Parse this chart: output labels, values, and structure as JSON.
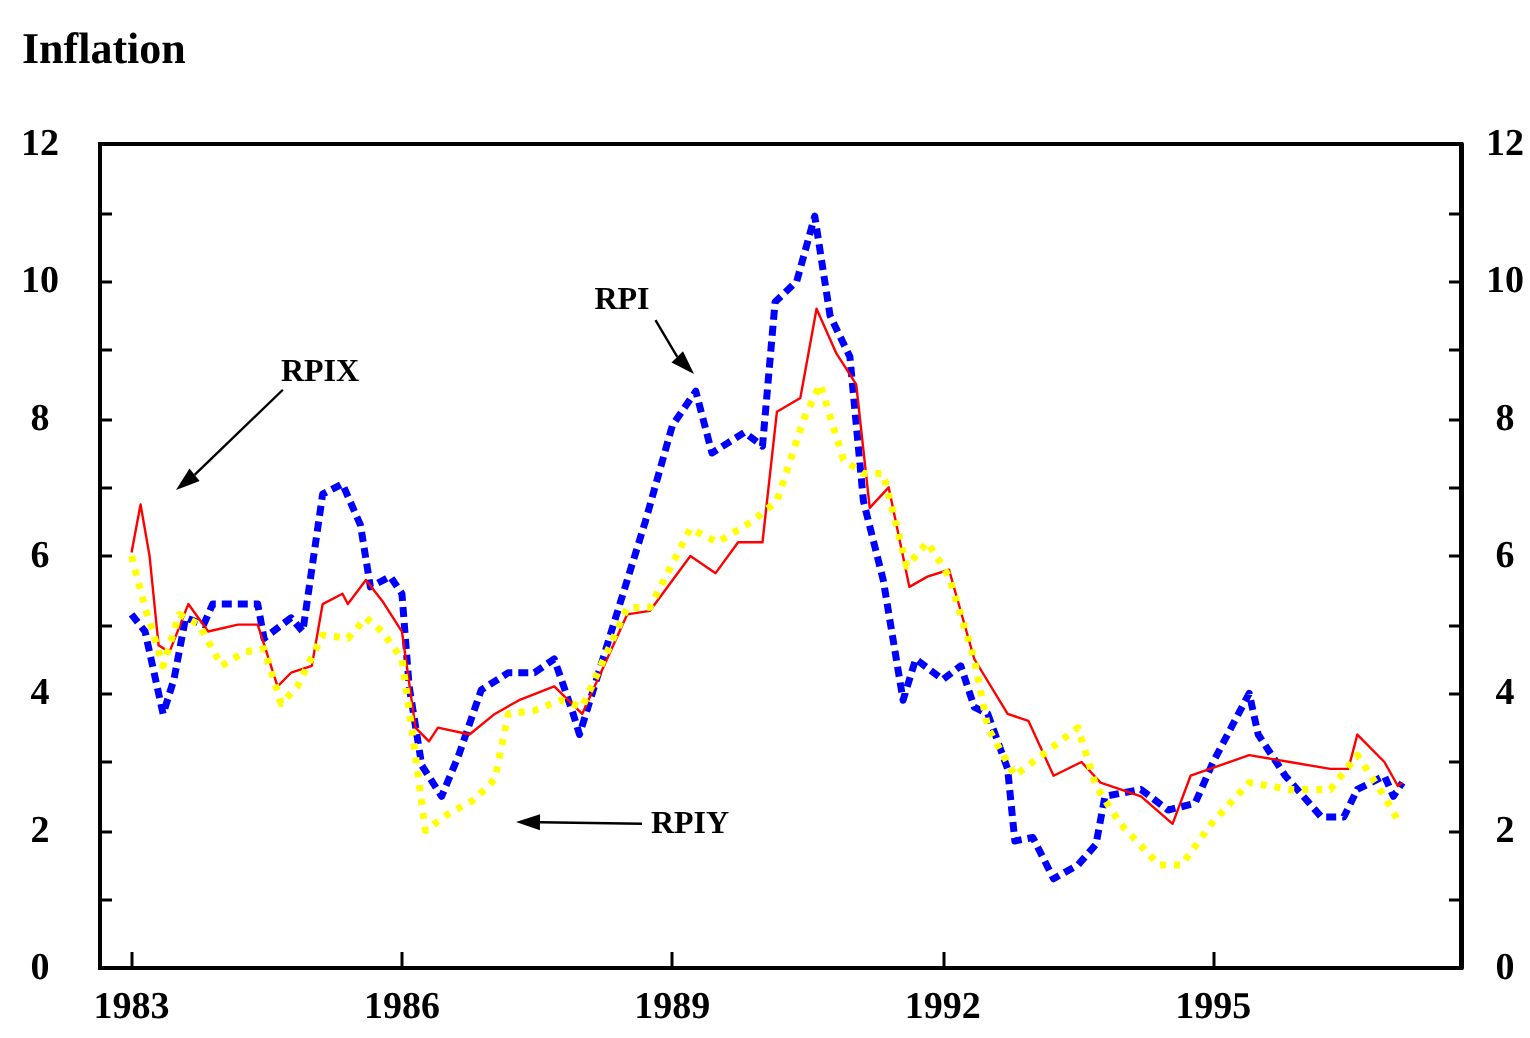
{
  "chart_data": {
    "type": "line",
    "title": "Inflation",
    "xlim": [
      1982.65,
      1997.75
    ],
    "xticks": [
      1983,
      1986,
      1989,
      1992,
      1995
    ],
    "ylim": [
      0,
      12
    ],
    "yticks": [
      0,
      {
        "value": 1,
        "label": null
      },
      2,
      {
        "value": 3,
        "label": null
      },
      4,
      {
        "value": 5,
        "label": null
      },
      6,
      {
        "value": 7,
        "label": null
      },
      8,
      {
        "value": 9,
        "label": null
      },
      10,
      {
        "value": 11,
        "label": null
      },
      12
    ],
    "y2lim": [
      0,
      12
    ],
    "y2ticks": [
      0,
      {
        "value": 1,
        "label": null
      },
      2,
      {
        "value": 3,
        "label": null
      },
      4,
      {
        "value": 5,
        "label": null
      },
      6,
      {
        "value": 7,
        "label": null
      },
      8,
      {
        "value": 9,
        "label": null
      },
      10,
      {
        "value": 11,
        "label": null
      },
      12
    ],
    "grid": false,
    "marker": "none",
    "series": [
      {
        "color": "#0000ff",
        "line_style": "dashed",
        "x": [
          1983.0,
          1983.15,
          1983.35,
          1983.47,
          1983.6,
          1983.8,
          1983.9,
          1984.4,
          1984.47,
          1984.77,
          1984.9,
          1985.12,
          1985.34,
          1985.54,
          1985.65,
          1985.87,
          1986.0,
          1986.08,
          1986.22,
          1986.44,
          1986.63,
          1986.88,
          1987.18,
          1987.47,
          1987.69,
          1987.9,
          1987.97,
          1988.5,
          1988.7,
          1989.0,
          1989.26,
          1989.44,
          1989.8,
          1990.0,
          1990.14,
          1990.38,
          1990.58,
          1990.75,
          1990.97,
          1991.12,
          1991.34,
          1991.56,
          1991.7,
          1992.0,
          1992.2,
          1992.35,
          1992.5,
          1992.72,
          1992.8,
          1993.0,
          1993.23,
          1993.5,
          1993.7,
          1993.8,
          1994.2,
          1994.5,
          1994.8,
          1995.0,
          1995.2,
          1995.4,
          1995.5,
          1995.8,
          1996.2,
          1996.45,
          1996.6,
          1996.9,
          1997.0,
          1997.1
        ],
        "values": [
          5.15,
          4.9,
          3.7,
          4.2,
          5.1,
          5.0,
          5.3,
          5.3,
          4.8,
          5.1,
          4.9,
          6.9,
          7.05,
          6.45,
          5.55,
          5.7,
          5.45,
          4.1,
          2.95,
          2.5,
          3.1,
          4.05,
          4.3,
          4.3,
          4.5,
          3.7,
          3.4,
          5.65,
          6.5,
          7.9,
          8.4,
          7.5,
          7.8,
          7.6,
          9.7,
          10.0,
          10.95,
          9.5,
          8.9,
          6.8,
          5.65,
          3.9,
          4.5,
          4.2,
          4.4,
          3.8,
          3.7,
          2.9,
          1.85,
          1.9,
          1.3,
          1.5,
          1.8,
          2.5,
          2.6,
          2.3,
          2.4,
          3.0,
          3.5,
          4.0,
          3.4,
          2.8,
          2.2,
          2.2,
          2.6,
          2.8,
          2.5,
          2.7
        ]
      },
      {
        "color": "#ff0000",
        "line_style": "solid",
        "x": [
          1983.0,
          1983.1,
          1983.2,
          1983.3,
          1983.42,
          1983.63,
          1983.85,
          1984.18,
          1984.4,
          1984.62,
          1984.77,
          1985.0,
          1985.12,
          1985.34,
          1985.4,
          1985.6,
          1985.78,
          1986.0,
          1986.15,
          1986.3,
          1986.4,
          1986.75,
          1987.03,
          1987.3,
          1987.69,
          1988.0,
          1988.5,
          1988.75,
          1989.2,
          1989.48,
          1989.73,
          1990.0,
          1990.16,
          1990.42,
          1990.6,
          1990.82,
          1991.04,
          1991.19,
          1991.4,
          1991.63,
          1991.83,
          1992.07,
          1992.35,
          1992.72,
          1992.95,
          1993.23,
          1993.54,
          1993.75,
          1994.2,
          1994.55,
          1994.75,
          1995.4,
          1995.85,
          1996.3,
          1996.5,
          1996.6,
          1996.9,
          1997.05,
          1997.1
        ],
        "values": [
          6.05,
          6.75,
          6.0,
          4.7,
          4.6,
          5.3,
          4.9,
          5.0,
          5.0,
          4.1,
          4.3,
          4.4,
          5.3,
          5.45,
          5.3,
          5.65,
          5.35,
          4.9,
          3.5,
          3.3,
          3.5,
          3.4,
          3.7,
          3.9,
          4.1,
          3.7,
          5.15,
          5.2,
          6.0,
          5.75,
          6.2,
          6.2,
          8.1,
          8.3,
          9.6,
          8.95,
          8.5,
          6.7,
          7.0,
          5.55,
          5.7,
          5.8,
          4.5,
          3.7,
          3.6,
          2.8,
          3.0,
          2.7,
          2.5,
          2.1,
          2.8,
          3.1,
          3.0,
          2.9,
          2.9,
          3.4,
          3.0,
          2.65,
          2.7
        ]
      },
      {
        "color": "#ffff00",
        "line_style": "dotted",
        "x": [
          1983.0,
          1983.15,
          1983.35,
          1983.53,
          1983.75,
          1984.0,
          1984.25,
          1984.47,
          1984.66,
          1984.84,
          1985.12,
          1985.4,
          1985.6,
          1985.78,
          1986.0,
          1986.15,
          1986.26,
          1986.52,
          1986.8,
          1987.03,
          1987.18,
          1987.47,
          1987.76,
          1988.0,
          1988.5,
          1988.75,
          1989.2,
          1989.5,
          1989.88,
          1990.16,
          1990.46,
          1990.64,
          1990.9,
          1991.12,
          1991.34,
          1991.6,
          1991.83,
          1992.07,
          1992.35,
          1992.5,
          1992.8,
          1993.1,
          1993.5,
          1993.7,
          1993.97,
          1994.4,
          1994.65,
          1994.98,
          1995.4,
          1995.85,
          1996.3,
          1996.6,
          1996.9,
          1997.05
        ],
        "values": [
          6.0,
          5.25,
          4.4,
          5.15,
          5.0,
          4.4,
          4.6,
          4.65,
          3.85,
          4.1,
          4.85,
          4.8,
          5.1,
          4.9,
          4.5,
          3.1,
          2.0,
          2.25,
          2.45,
          2.75,
          3.7,
          3.75,
          3.9,
          3.8,
          5.25,
          5.25,
          6.4,
          6.2,
          6.5,
          6.8,
          8.0,
          8.5,
          7.4,
          7.2,
          7.2,
          5.85,
          6.2,
          5.7,
          4.5,
          3.5,
          2.8,
          3.1,
          3.5,
          2.65,
          2.1,
          1.5,
          1.5,
          2.1,
          2.7,
          2.6,
          2.6,
          3.1,
          2.5,
          2.15
        ]
      }
    ],
    "annotations": [
      "RPIX",
      "RPI",
      "RPIY"
    ]
  }
}
